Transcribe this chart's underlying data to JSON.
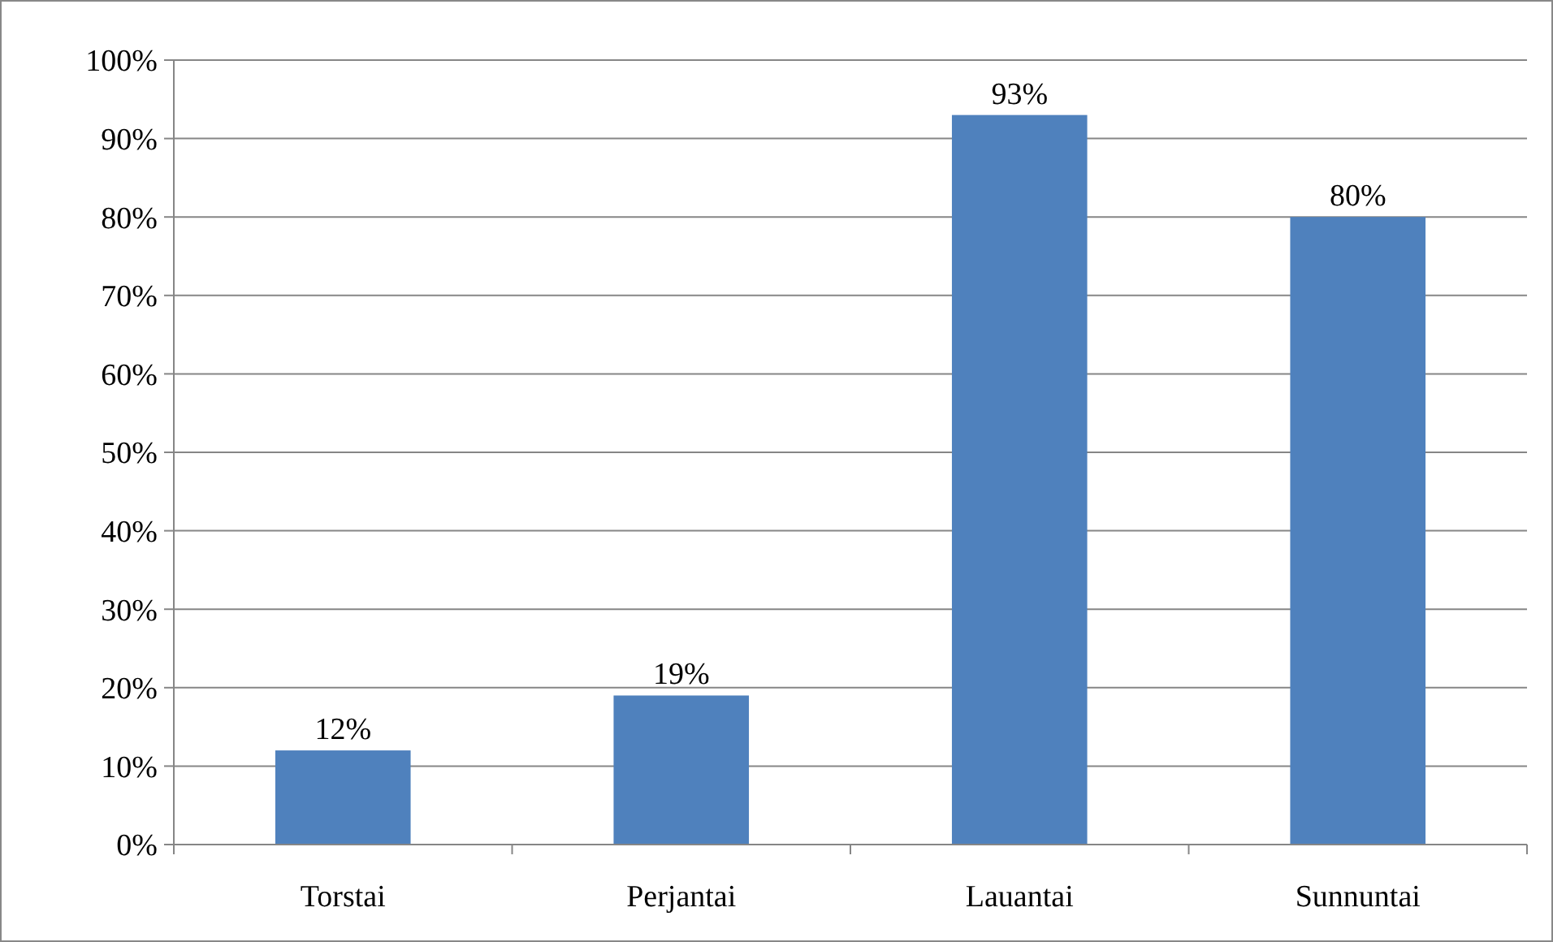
{
  "chart_data": {
    "type": "bar",
    "categories": [
      "Torstai",
      "Perjantai",
      "Lauantai",
      "Sunnuntai"
    ],
    "values": [
      12,
      19,
      93,
      80
    ],
    "value_labels": [
      "12%",
      "19%",
      "93%",
      "80%"
    ],
    "color": "#4f81bd",
    "ylim": [
      0,
      100
    ],
    "yticks": [
      {
        "value": 0,
        "label": "0%"
      },
      {
        "value": 10,
        "label": "10%"
      },
      {
        "value": 20,
        "label": "20%"
      },
      {
        "value": 30,
        "label": "30%"
      },
      {
        "value": 40,
        "label": "40%"
      },
      {
        "value": 50,
        "label": "50%"
      },
      {
        "value": 60,
        "label": "60%"
      },
      {
        "value": 70,
        "label": "70%"
      },
      {
        "value": 80,
        "label": "80%"
      },
      {
        "value": 90,
        "label": "90%"
      },
      {
        "value": 100,
        "label": "100%"
      }
    ],
    "grid": "y"
  }
}
